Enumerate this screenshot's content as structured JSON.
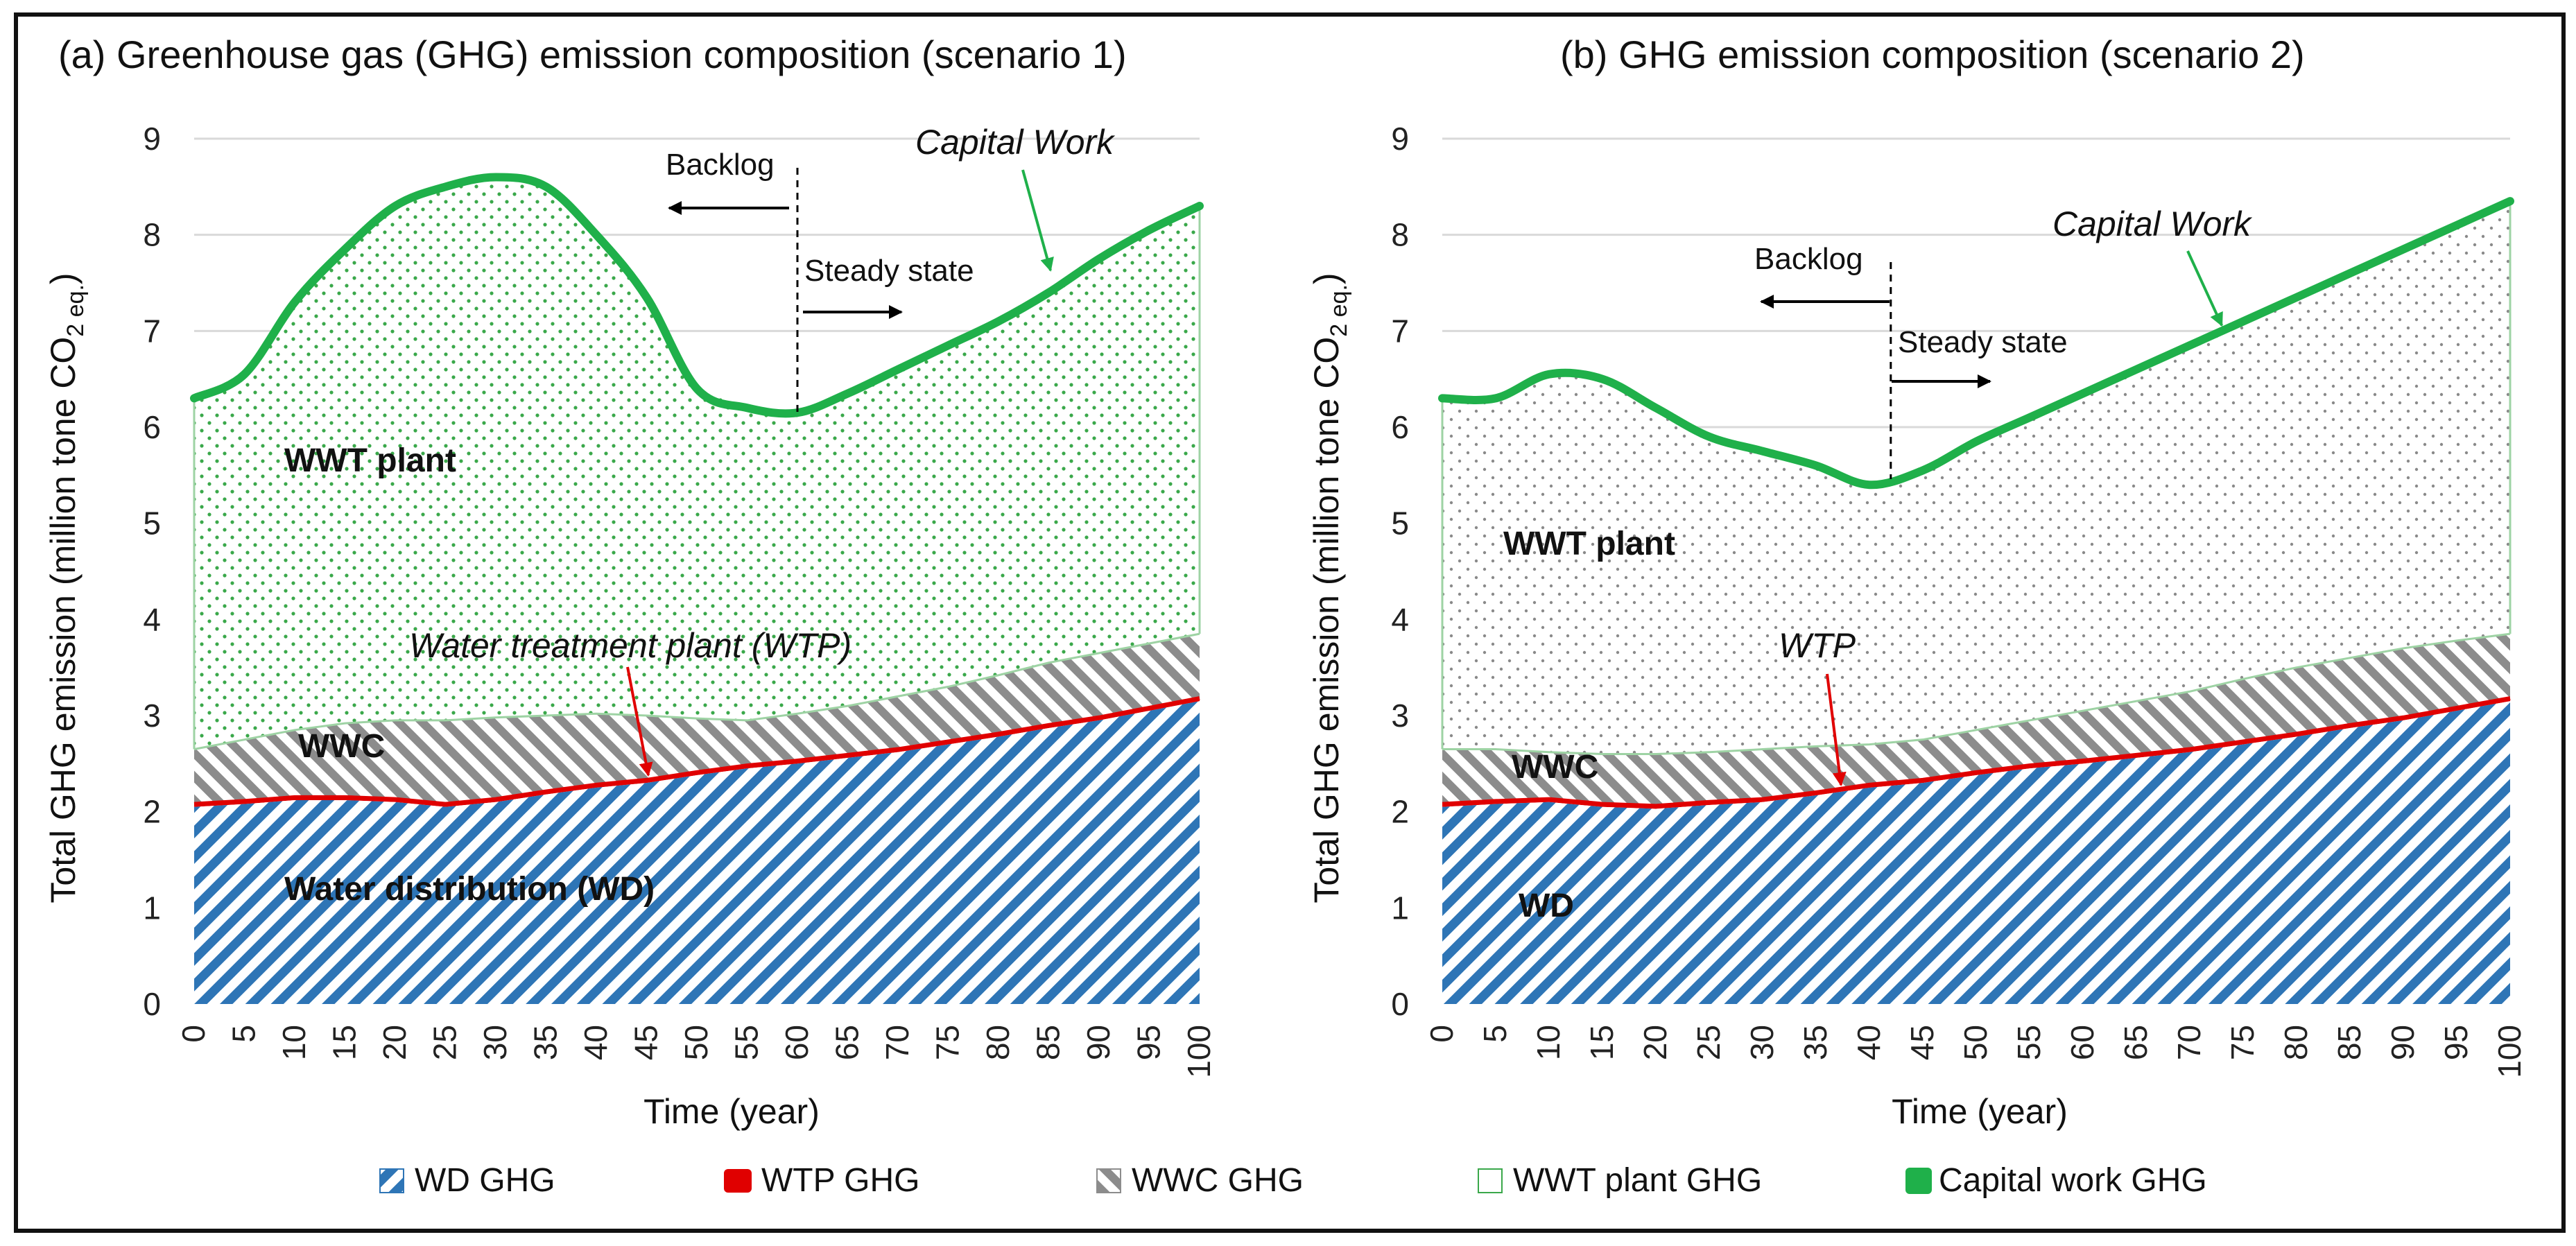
{
  "colors": {
    "wd": "#2e75b6",
    "wtp": "#e00000",
    "wwc": "#8c8c8c",
    "wwt": "#3aa84a",
    "capital": "#1fb04a",
    "grid": "#d9d9d9",
    "axis": "#bfbfbf"
  },
  "chart_data": [
    {
      "type": "area",
      "title": "(a) Greenhouse gas (GHG) emission composition (scenario 1)",
      "xlabel": "Time (year)",
      "ylabel": "Total GHG emission (million tone CO",
      "ylabel_sub": "2 eq.",
      "ylabel_end": ")",
      "ylim": [
        0,
        9
      ],
      "yticks": [
        "0",
        "1",
        "2",
        "3",
        "4",
        "5",
        "6",
        "7",
        "8",
        "9"
      ],
      "x": [
        0,
        5,
        10,
        15,
        20,
        25,
        30,
        35,
        40,
        45,
        50,
        55,
        60,
        65,
        70,
        75,
        80,
        85,
        90,
        95,
        100
      ],
      "series": [
        {
          "name": "WD GHG",
          "values": [
            2.05,
            2.08,
            2.12,
            2.12,
            2.1,
            2.05,
            2.1,
            2.18,
            2.25,
            2.3,
            2.38,
            2.45,
            2.5,
            2.56,
            2.62,
            2.7,
            2.78,
            2.87,
            2.95,
            3.05,
            3.15
          ]
        },
        {
          "name": "WTP GHG",
          "values": [
            2.08,
            2.11,
            2.15,
            2.15,
            2.13,
            2.08,
            2.13,
            2.21,
            2.28,
            2.33,
            2.41,
            2.48,
            2.53,
            2.59,
            2.65,
            2.73,
            2.81,
            2.9,
            2.98,
            3.08,
            3.18
          ]
        },
        {
          "name": "WWC GHG",
          "values": [
            2.65,
            2.75,
            2.85,
            2.92,
            2.95,
            2.95,
            2.98,
            3.0,
            3.02,
            3.0,
            2.97,
            2.95,
            3.02,
            3.1,
            3.2,
            3.3,
            3.42,
            3.55,
            3.65,
            3.75,
            3.85
          ]
        },
        {
          "name": "Capital work GHG",
          "values": [
            6.3,
            6.55,
            7.3,
            7.85,
            8.3,
            8.5,
            8.6,
            8.5,
            8.0,
            7.35,
            6.4,
            6.2,
            6.15,
            6.35,
            6.6,
            6.85,
            7.1,
            7.4,
            7.75,
            8.05,
            8.3
          ]
        }
      ],
      "marker_x": 60,
      "annotations": {
        "backlog": "Backlog",
        "steady": "Steady state",
        "capital_work": "Capital Work",
        "wwt_plant": "WWT plant",
        "wwc": "WWC",
        "wtp": "Water treatment plant (WTP)",
        "wd": "Water distribution (WD)"
      }
    },
    {
      "type": "area",
      "title": "(b) GHG emission composition (scenario 2)",
      "xlabel": "Time (year)",
      "ylabel": "Total GHG emission (million tone CO",
      "ylabel_sub": "2 eq.",
      "ylabel_end": ")",
      "ylim": [
        0,
        9
      ],
      "yticks": [
        "0",
        "1",
        "2",
        "3",
        "4",
        "5",
        "6",
        "7",
        "8",
        "9"
      ],
      "x": [
        0,
        5,
        10,
        15,
        20,
        25,
        30,
        35,
        40,
        45,
        50,
        55,
        60,
        65,
        70,
        75,
        80,
        85,
        90,
        95,
        100
      ],
      "series": [
        {
          "name": "WD GHG",
          "values": [
            2.05,
            2.08,
            2.1,
            2.05,
            2.03,
            2.07,
            2.1,
            2.17,
            2.25,
            2.3,
            2.38,
            2.45,
            2.5,
            2.56,
            2.62,
            2.7,
            2.78,
            2.87,
            2.95,
            3.05,
            3.15
          ]
        },
        {
          "name": "WTP GHG",
          "values": [
            2.08,
            2.11,
            2.13,
            2.08,
            2.06,
            2.1,
            2.13,
            2.2,
            2.28,
            2.33,
            2.41,
            2.48,
            2.53,
            2.59,
            2.65,
            2.73,
            2.81,
            2.9,
            2.98,
            3.08,
            3.18
          ]
        },
        {
          "name": "WWC GHG",
          "values": [
            2.65,
            2.65,
            2.62,
            2.6,
            2.6,
            2.62,
            2.65,
            2.68,
            2.7,
            2.75,
            2.85,
            2.95,
            3.05,
            3.15,
            3.25,
            3.38,
            3.5,
            3.6,
            3.7,
            3.78,
            3.85
          ]
        },
        {
          "name": "Capital work GHG",
          "values": [
            6.3,
            6.3,
            6.55,
            6.5,
            6.2,
            5.9,
            5.75,
            5.6,
            5.4,
            5.55,
            5.85,
            6.1,
            6.35,
            6.6,
            6.85,
            7.1,
            7.35,
            7.6,
            7.85,
            8.1,
            8.35
          ]
        }
      ],
      "marker_x": 42,
      "annotations": {
        "backlog": "Backlog",
        "steady": "Steady state",
        "capital_work": "Capital Work",
        "wwt_plant": "WWT plant",
        "wwc": "WWC",
        "wtp": "WTP",
        "wd": "WD"
      }
    }
  ],
  "legend": [
    {
      "key": "wd",
      "label": "WD GHG"
    },
    {
      "key": "wtp",
      "label": "WTP GHG"
    },
    {
      "key": "wwc",
      "label": "WWC GHG"
    },
    {
      "key": "wwt",
      "label": "WWT plant GHG"
    },
    {
      "key": "capital",
      "label": "Capital work GHG"
    }
  ]
}
